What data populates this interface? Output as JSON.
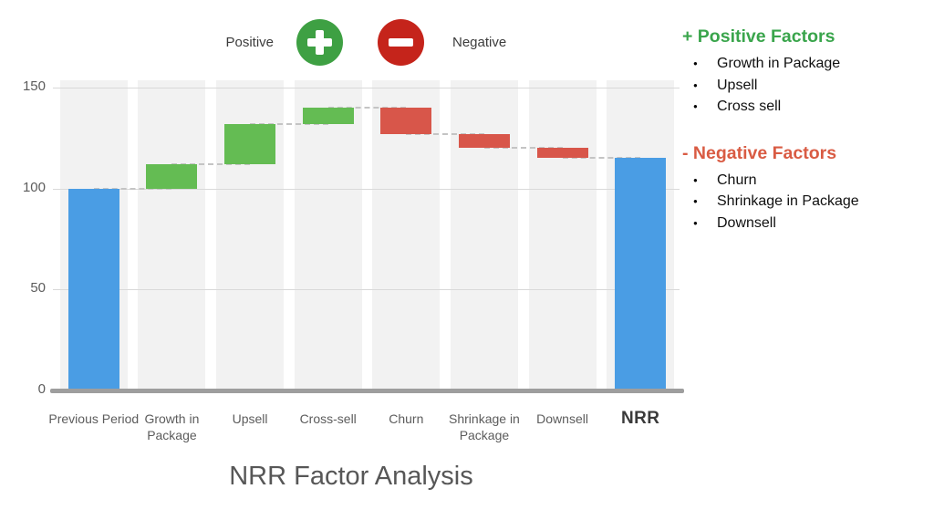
{
  "legend": {
    "positive_label": "Positive",
    "negative_label": "Negative"
  },
  "panel": {
    "positive": {
      "title": "+ Positive Factors",
      "items": [
        "Growth in Package",
        "Upsell",
        "Cross sell"
      ]
    },
    "negative": {
      "title": "- Negative Factors",
      "items": [
        "Churn",
        "Shrinkage in Package",
        "Downsell"
      ]
    }
  },
  "colors": {
    "legend_plus_circle": "#3ea043",
    "legend_minus_circle": "#c5241b",
    "panel_positive_title": "#3aa54c",
    "panel_negative_title": "#d95b43"
  },
  "chart_data": {
    "type": "bar",
    "subtype": "waterfall",
    "title": "NRR Factor Analysis",
    "categories": [
      "Previous Period",
      "Growth in Package",
      "Upsell",
      "Cross-sell",
      "Churn",
      "Shrinkage in Package",
      "Downsell",
      "NRR"
    ],
    "bars": [
      {
        "label": "Previous Period",
        "kind": "total",
        "start": 0,
        "end": 100,
        "value": 100
      },
      {
        "label": "Growth in Package",
        "kind": "increase",
        "start": 100,
        "end": 112,
        "value": 12
      },
      {
        "label": "Upsell",
        "kind": "increase",
        "start": 112,
        "end": 132,
        "value": 20
      },
      {
        "label": "Cross-sell",
        "kind": "increase",
        "start": 132,
        "end": 140,
        "value": 8
      },
      {
        "label": "Churn",
        "kind": "decrease",
        "start": 140,
        "end": 127,
        "value": -13
      },
      {
        "label": "Shrinkage in Package",
        "kind": "decrease",
        "start": 127,
        "end": 120,
        "value": -7
      },
      {
        "label": "Downsell",
        "kind": "decrease",
        "start": 120,
        "end": 115,
        "value": -5
      },
      {
        "label": "NRR",
        "kind": "total",
        "start": 0,
        "end": 115,
        "value": 115
      }
    ],
    "colors": {
      "total": "#4a9de4",
      "increase": "#64bc53",
      "decrease": "#d8564a"
    },
    "yticks": [
      0,
      50,
      100,
      150
    ],
    "ylim": [
      0,
      150
    ],
    "grid": true,
    "legend_position": "top",
    "connector_style": "dashed"
  }
}
